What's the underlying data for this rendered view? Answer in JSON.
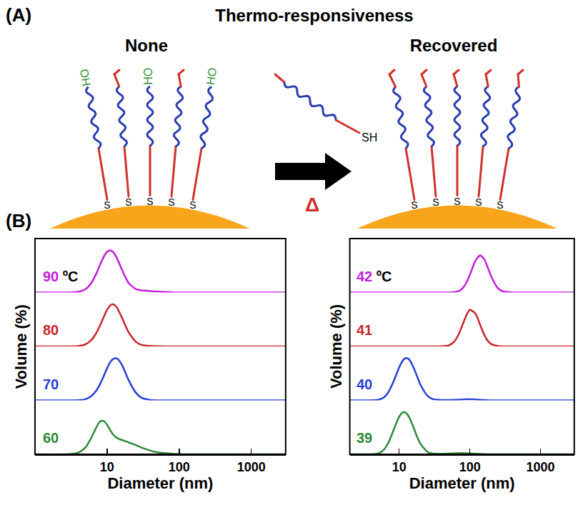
{
  "panel_a": {
    "label": "(A)",
    "title": "Thermo-responsiveness",
    "left": {
      "heading": "None",
      "anchor_labels": [
        "S",
        "S",
        "S",
        "S",
        "S"
      ],
      "end_labels": [
        "HO",
        "HO",
        "HO"
      ]
    },
    "right": {
      "heading": "Recovered",
      "anchor_labels": [
        "S",
        "S",
        "S",
        "S",
        "S"
      ]
    },
    "free_thiol": "SH",
    "arrow_label": "Δ"
  },
  "panel_b": {
    "label": "(B)"
  },
  "chart_data": [
    {
      "type": "line",
      "x_label": "Diameter (nm)",
      "y_label": "Volume (%)",
      "log": "x",
      "tick_labels": "x",
      "grid": false,
      "xlim": [
        1,
        3000
      ],
      "xticks": [
        10,
        100,
        1000
      ],
      "ylim": [
        0,
        32
      ],
      "annotations": [
        "ºC"
      ],
      "x": [
        1,
        3,
        4,
        5,
        6,
        7,
        8,
        9,
        10,
        11,
        12,
        13,
        14,
        16,
        18,
        20,
        25,
        30,
        40,
        50,
        60,
        70,
        80,
        90,
        100,
        120,
        140,
        160,
        180,
        200,
        250,
        300,
        400,
        600,
        1000,
        2000,
        3000
      ],
      "series": [
        {
          "name": "90",
          "color": "#c21fd9",
          "values": [
            0,
            0,
            0.4,
            1.9,
            5.4,
            10.7,
            16.5,
            21.2,
            24.1,
            25,
            24.2,
            22.1,
            19.5,
            13.7,
            8.9,
            5.5,
            2.0,
            1.2,
            0.8,
            0.5,
            0.3,
            0.2,
            0.1,
            0,
            0,
            0,
            0,
            0,
            0,
            0,
            0,
            0,
            0,
            0,
            0,
            0,
            0
          ]
        },
        {
          "name": "80",
          "color": "#c8262b",
          "values": [
            0,
            0,
            0.2,
            1.2,
            3.6,
            7.6,
            12.5,
            17.5,
            21.6,
            24.3,
            25,
            24.2,
            22.3,
            17.2,
            12.3,
            8.2,
            2.8,
            0.9,
            0.3,
            0.1,
            0,
            0,
            0,
            0,
            0,
            0,
            0,
            0,
            0,
            0,
            0,
            0,
            0,
            0,
            0,
            0,
            0
          ]
        },
        {
          "name": "70",
          "color": "#2540d6",
          "values": [
            0,
            0,
            0.1,
            0.7,
            2.4,
            5.5,
            9.7,
            14.5,
            19,
            22.5,
            24.4,
            25,
            24.6,
            21.2,
            16.3,
            11.8,
            4.6,
            1.5,
            0.2,
            0,
            0,
            0,
            0,
            0,
            0,
            0,
            0,
            0,
            0,
            0,
            0,
            0,
            0,
            0,
            0,
            0,
            0
          ]
        },
        {
          "name": "60",
          "color": "#2d8a36",
          "values": [
            0,
            0.1,
            1.0,
            4,
            9.5,
            15.5,
            19.5,
            19.8,
            17.5,
            14.5,
            12,
            10.5,
            9.5,
            8.5,
            7.8,
            7,
            5.5,
            4,
            2.2,
            1.2,
            0.8,
            0.5,
            0.3,
            0.2,
            0.1,
            0,
            0,
            0,
            0,
            0,
            0,
            0,
            0,
            0,
            0,
            0,
            0
          ]
        }
      ]
    },
    {
      "type": "line",
      "x_label": "Diameter (nm)",
      "y_label": "Volume (%)",
      "log": "x",
      "tick_labels": "x",
      "grid": false,
      "xlim": [
        2,
        3000
      ],
      "xticks": [
        10,
        100,
        1000
      ],
      "ylim": [
        0,
        32
      ],
      "annotations": [
        "ºC"
      ],
      "x": [
        1,
        3,
        4,
        5,
        6,
        7,
        8,
        9,
        10,
        11,
        12,
        13,
        14,
        16,
        18,
        20,
        25,
        30,
        40,
        50,
        60,
        70,
        80,
        90,
        100,
        120,
        140,
        160,
        180,
        200,
        250,
        300,
        400,
        600,
        1000,
        2000,
        3000
      ],
      "series": [
        {
          "name": "42",
          "color": "#c21fd9",
          "values": [
            0,
            0,
            0,
            0,
            0,
            0,
            0,
            0,
            0,
            0,
            0,
            0,
            0,
            0,
            0,
            0,
            0,
            0,
            0,
            0,
            0.2,
            0.9,
            2.8,
            6.1,
            10.5,
            18.8,
            22,
            19.6,
            14.6,
            9.6,
            2.4,
            0.5,
            0,
            0,
            0,
            0,
            0
          ]
        },
        {
          "name": "41",
          "color": "#c8262b",
          "values": [
            0,
            0,
            0,
            0,
            0,
            0,
            0,
            0,
            0,
            0,
            0,
            0,
            0,
            0,
            0,
            0,
            0,
            0,
            0.1,
            0.6,
            2.8,
            7.5,
            13.6,
            18.8,
            21.7,
            19.5,
            12.7,
            6.8,
            3.2,
            1.4,
            0.2,
            0,
            0,
            0,
            0,
            0,
            0
          ]
        },
        {
          "name": "40",
          "color": "#2540d6",
          "values": [
            0,
            0,
            0,
            0.3,
            1.6,
            4.8,
            9.5,
            14.8,
            19.6,
            23,
            24.8,
            25,
            24,
            19.4,
            14,
            9.3,
            2.8,
            0.7,
            0.2,
            0.2,
            0.3,
            0.4,
            0.5,
            0.6,
            0.6,
            0.5,
            0.3,
            0.2,
            0.1,
            0,
            0,
            0,
            0,
            0,
            0,
            0,
            0
          ]
        },
        {
          "name": "39",
          "color": "#2d8a36",
          "values": [
            0,
            0,
            0,
            0.5,
            2.5,
            6.8,
            12.5,
            18,
            22.3,
            24.6,
            25,
            23.8,
            21.6,
            15.8,
            10.3,
            6.2,
            1.5,
            0.4,
            0.3,
            0.4,
            0.6,
            0.7,
            0.7,
            0.6,
            0.5,
            0.3,
            0.2,
            0.1,
            0,
            0,
            0,
            0,
            0,
            0,
            0,
            0,
            0
          ]
        }
      ]
    }
  ]
}
